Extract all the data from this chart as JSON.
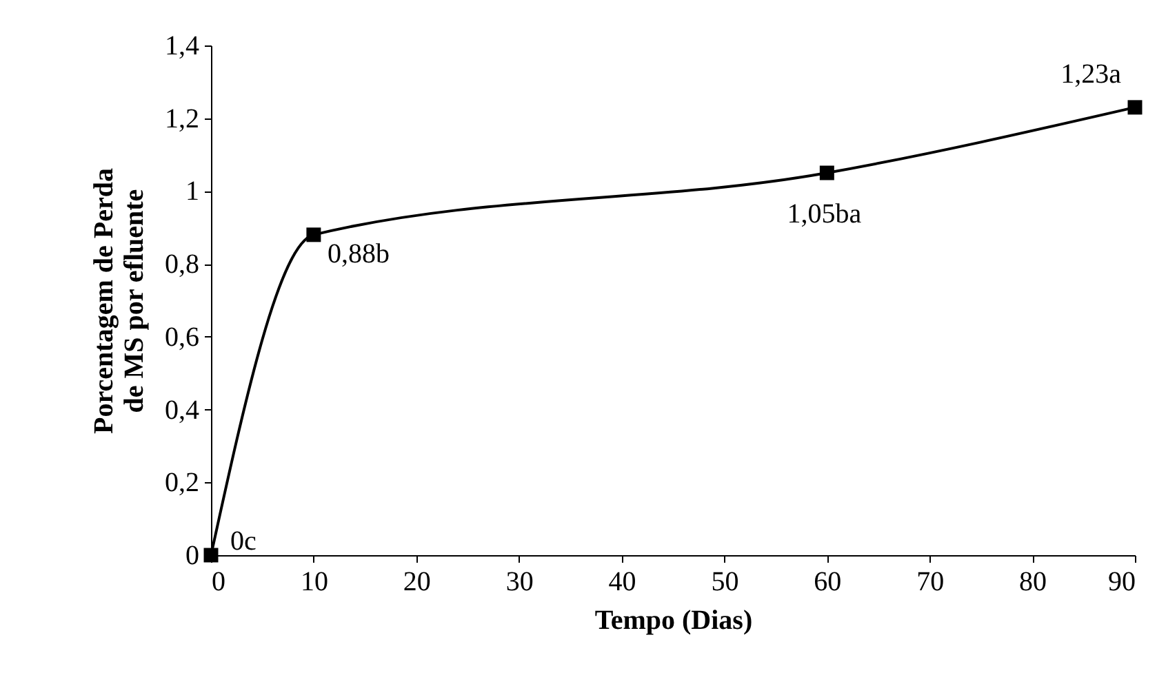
{
  "chart_data": {
    "type": "line",
    "xlabel": "Tempo (Dias)",
    "ylabel": "Porcentagem de Perda\nde MS por efluente",
    "x": [
      0,
      10,
      60,
      90
    ],
    "series": [
      {
        "color": "#000000",
        "values": [
          0,
          0.88,
          1.05,
          1.23
        ]
      }
    ],
    "xlim": [
      0,
      90
    ],
    "xticks": [
      0,
      10,
      20,
      30,
      40,
      50,
      60,
      70,
      80,
      90
    ],
    "ylim": [
      0,
      1.4
    ],
    "yticks": [
      0,
      {
        "value": 0.2,
        "label": "0,2"
      },
      {
        "value": 0.4,
        "label": "0,4"
      },
      {
        "value": 0.6,
        "label": "0,6"
      },
      {
        "value": 0.8,
        "label": "0,8"
      },
      1,
      {
        "value": 1.2,
        "label": "1,2"
      },
      {
        "value": 1.4,
        "label": "1,4"
      }
    ],
    "annotations": [
      {
        "text": "0c",
        "x": 0,
        "y": 0
      },
      {
        "text": "0,88b",
        "x": 10,
        "y": 0.88
      },
      {
        "text": "1,05ba",
        "x": 60,
        "y": 1.05
      },
      {
        "text": "1,23a",
        "x": 90,
        "y": 1.23
      }
    ],
    "marker": "square",
    "grid": false
  }
}
